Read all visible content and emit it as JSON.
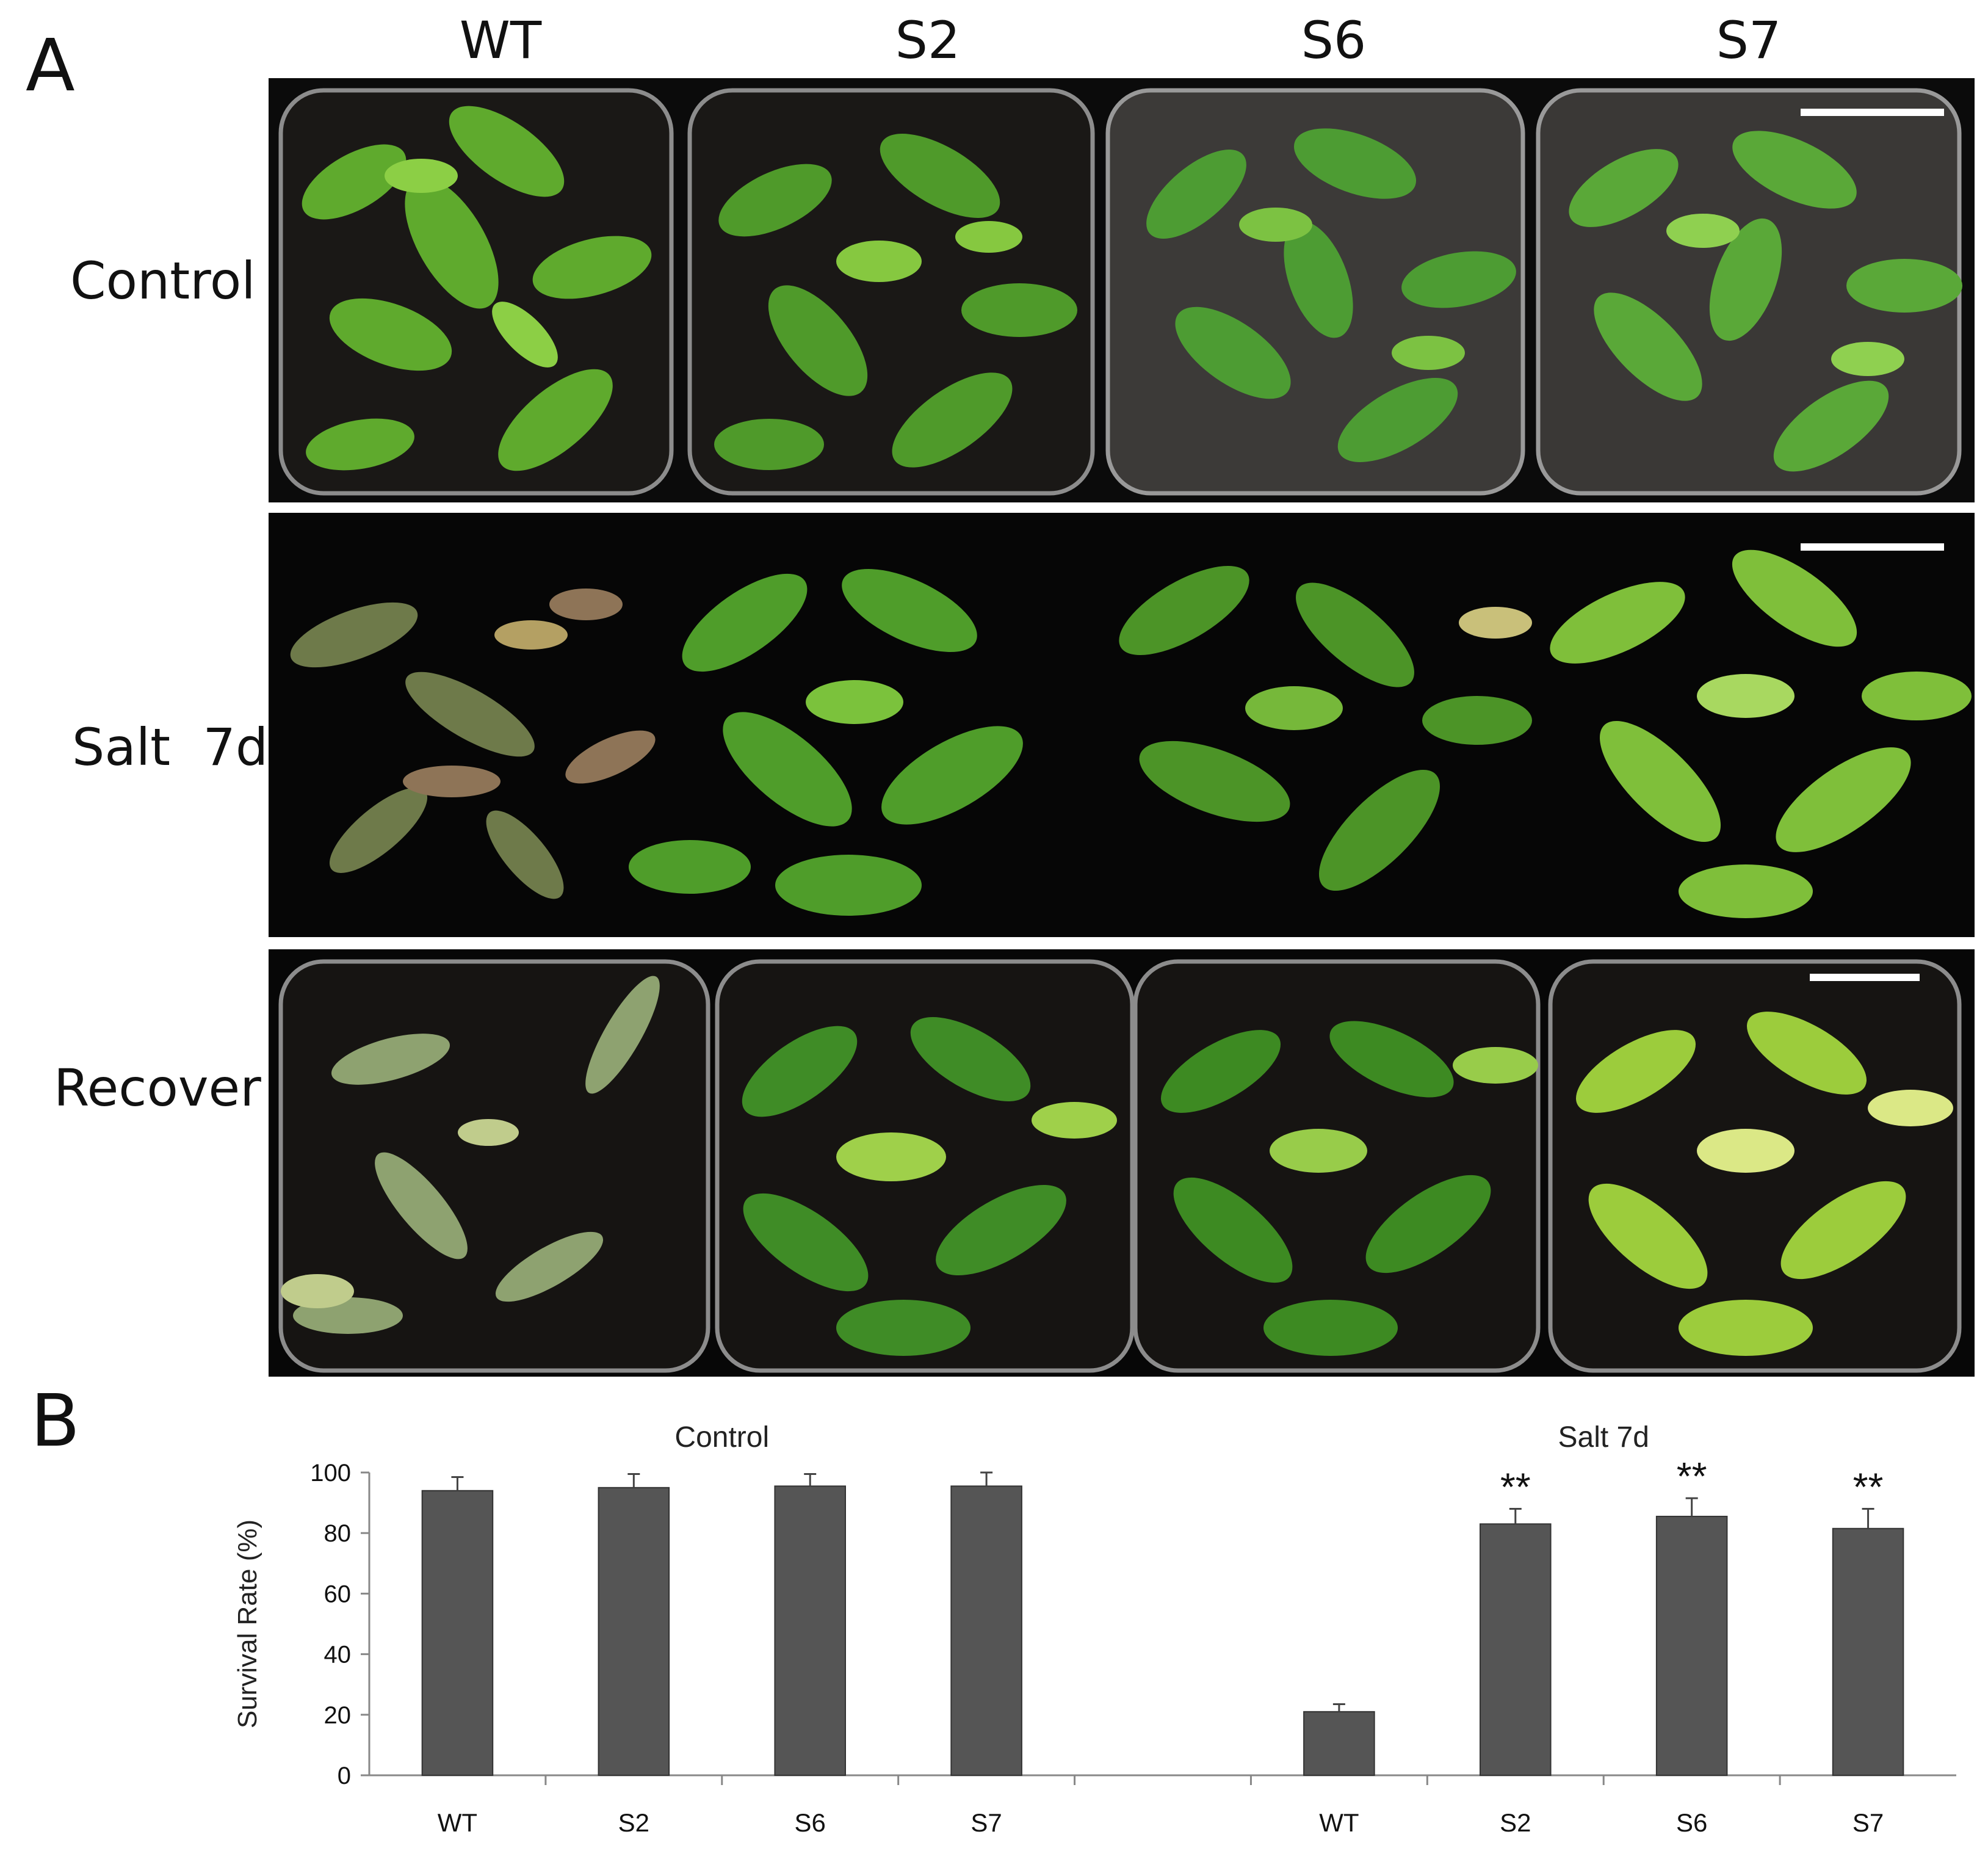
{
  "panel_a": {
    "letter": "A",
    "columns": [
      "WT",
      "S2",
      "S6",
      "S7"
    ],
    "rows": [
      "Control",
      "Salt  7d",
      "Recover"
    ]
  },
  "panel_b": {
    "letter": "B"
  },
  "chart_data": {
    "type": "bar",
    "ylabel": "Survival Rate (%)",
    "ylim": [
      0,
      100
    ],
    "yticks": [
      0,
      20,
      40,
      60,
      80,
      100
    ],
    "grid": false,
    "groups": [
      {
        "name": "Control",
        "categories": [
          "WT",
          "S2",
          "S6",
          "S7"
        ],
        "values": [
          94,
          95,
          95.5,
          95.5
        ],
        "errors": [
          4.5,
          4.5,
          4,
          4.5
        ],
        "significance": [
          "",
          "",
          "",
          ""
        ]
      },
      {
        "name": "Salt 7d",
        "categories": [
          "WT",
          "S2",
          "S6",
          "S7"
        ],
        "values": [
          21,
          83,
          85.5,
          81.5
        ],
        "errors": [
          2.5,
          5,
          6,
          6.5
        ],
        "significance": [
          "",
          "**",
          "**",
          "**"
        ]
      }
    ],
    "bar_color": "#555555"
  }
}
